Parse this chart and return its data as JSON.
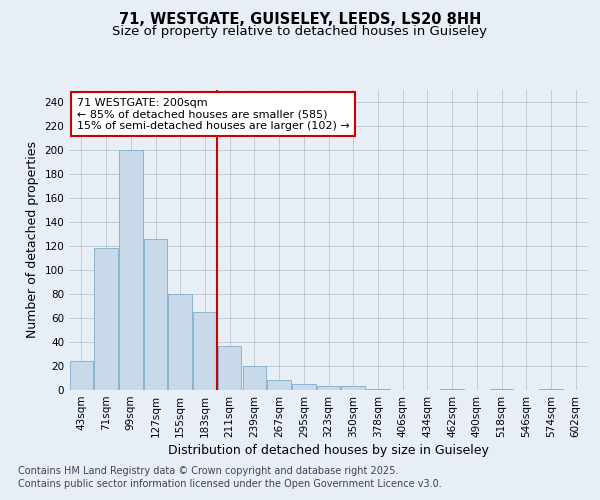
{
  "title_line1": "71, WESTGATE, GUISELEY, LEEDS, LS20 8HH",
  "title_line2": "Size of property relative to detached houses in Guiseley",
  "xlabel": "Distribution of detached houses by size in Guiseley",
  "ylabel": "Number of detached properties",
  "categories": [
    "43sqm",
    "71sqm",
    "99sqm",
    "127sqm",
    "155sqm",
    "183sqm",
    "211sqm",
    "239sqm",
    "267sqm",
    "295sqm",
    "323sqm",
    "350sqm",
    "378sqm",
    "406sqm",
    "434sqm",
    "462sqm",
    "490sqm",
    "518sqm",
    "546sqm",
    "574sqm",
    "602sqm"
  ],
  "values": [
    24,
    118,
    200,
    126,
    80,
    65,
    37,
    20,
    8,
    5,
    3,
    3,
    1,
    0,
    0,
    1,
    0,
    1,
    0,
    1,
    0
  ],
  "bar_color": "#c8d9ea",
  "bar_edge_color": "#8ab4d0",
  "vline_x_index": 6,
  "vline_color": "#cc0000",
  "annotation_text": "71 WESTGATE: 200sqm\n← 85% of detached houses are smaller (585)\n15% of semi-detached houses are larger (102) →",
  "annotation_box_color": "#ffffff",
  "annotation_box_edge": "#cc0000",
  "bg_color": "#e8eef5",
  "plot_bg_color": "#e8eef5",
  "ylim": [
    0,
    250
  ],
  "yticks": [
    0,
    20,
    40,
    60,
    80,
    100,
    120,
    140,
    160,
    180,
    200,
    220,
    240
  ],
  "footer_line1": "Contains HM Land Registry data © Crown copyright and database right 2025.",
  "footer_line2": "Contains public sector information licensed under the Open Government Licence v3.0.",
  "title_fontsize": 10.5,
  "subtitle_fontsize": 9.5,
  "axis_label_fontsize": 9,
  "tick_fontsize": 7.5,
  "annotation_fontsize": 8,
  "footer_fontsize": 7
}
